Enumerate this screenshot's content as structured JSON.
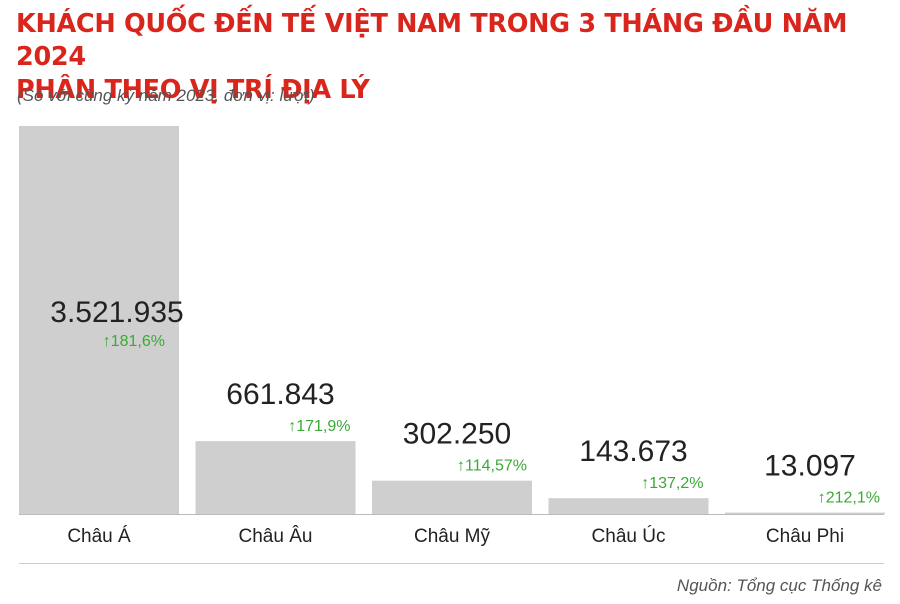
{
  "header": {
    "title_line1": "KHÁCH QUỐC ĐẾN TẾ VIỆT NAM TRONG 3 THÁNG ĐẦU NĂM 2024",
    "title_line2": "PHÂN THEO VỊ TRÍ ĐỊA LÝ",
    "subtitle": "(So với cùng kỳ năm 2023, đơn vị: lượt)"
  },
  "footer": {
    "source": "Nguồn: Tổng cục Thống kê"
  },
  "colors": {
    "bar": "#cfcfcf",
    "title": "#d9251c",
    "growth": "#3aa935",
    "value": "#222222"
  },
  "chart_data": {
    "type": "bar",
    "categories": [
      "Châu Á",
      "Châu Âu",
      "Châu Mỹ",
      "Châu Úc",
      "Châu Phi"
    ],
    "values": [
      3521935,
      661843,
      302250,
      143673,
      13097
    ],
    "value_labels": [
      "3.521.935",
      "661.843",
      "302.250",
      "143.673",
      "13.097"
    ],
    "growth_labels": [
      "181,6%",
      "171,9%",
      "114,57%",
      "137,2%",
      "212,1%"
    ],
    "growth_arrow": "↑",
    "ylim": [
      0,
      3521935
    ],
    "grid": false,
    "legend": "none"
  }
}
